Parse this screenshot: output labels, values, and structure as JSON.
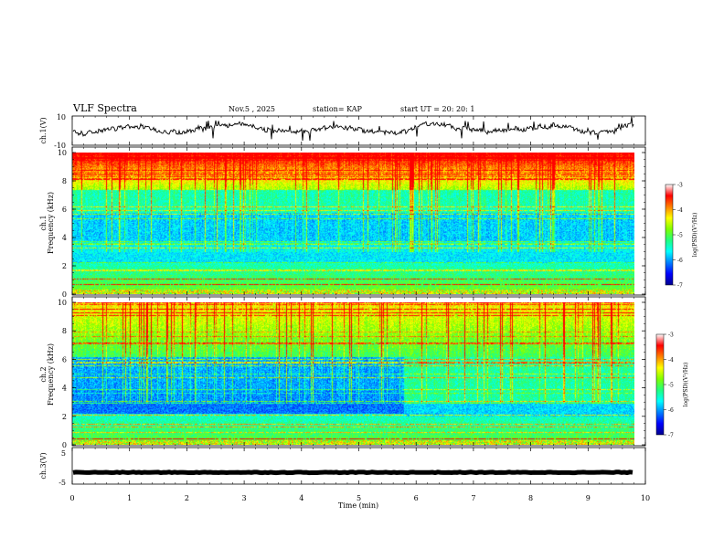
{
  "header": {
    "title": "VLF Spectra",
    "date": "Nov.5 , 2025",
    "station": "station= KAP",
    "start": "start UT = 20: 20: 1"
  },
  "chart_data": [
    {
      "id": "ch1-waveform",
      "type": "line",
      "ylabel": "ch.1(V)",
      "ylim": [
        -10,
        10
      ],
      "yticks": [
        "10",
        "-10"
      ],
      "series_color": "#000000"
    },
    {
      "id": "ch1-spectrogram",
      "type": "heatmap",
      "ylabel_line1": "ch.1",
      "ylabel_line2": "Frequency (kHz)",
      "ylim": [
        0,
        10
      ],
      "yticks": [
        "10",
        "8",
        "6",
        "4",
        "2",
        "0"
      ],
      "colorbar": {
        "label": "log(PSD)(V²/Hz)",
        "range": [
          -7,
          -3
        ],
        "ticks": [
          "-3",
          "-4",
          "-5",
          "-6",
          "-7"
        ]
      }
    },
    {
      "id": "ch2-spectrogram",
      "type": "heatmap",
      "ylabel_line1": "ch.2",
      "ylabel_line2": "Frequency (kHz)",
      "ylim": [
        0,
        10
      ],
      "yticks": [
        "10",
        "8",
        "6",
        "4",
        "2",
        "0"
      ],
      "colorbar": {
        "label": "log(PSD)(V²/Hz)",
        "range": [
          -7,
          -3
        ],
        "ticks": [
          "-3",
          "-4",
          "-5",
          "-6",
          "-7"
        ]
      }
    },
    {
      "id": "ch3-waveform",
      "type": "line",
      "ylabel": "ch.3(V)",
      "ylim": [
        -5,
        5
      ],
      "yticks": [
        "5",
        "-5"
      ],
      "series_color": "#000000"
    }
  ],
  "xaxis": {
    "label": "Time (min)",
    "xlim": [
      0,
      10
    ],
    "ticks": [
      "0",
      "1",
      "2",
      "3",
      "4",
      "5",
      "6",
      "7",
      "8",
      "9",
      "10"
    ],
    "data_end": 9.8
  },
  "colormap": [
    "#00008f",
    "#0000ff",
    "#0080ff",
    "#00ffff",
    "#20ff80",
    "#80ff00",
    "#ffff00",
    "#ff8000",
    "#ff0000",
    "#ffffff"
  ]
}
